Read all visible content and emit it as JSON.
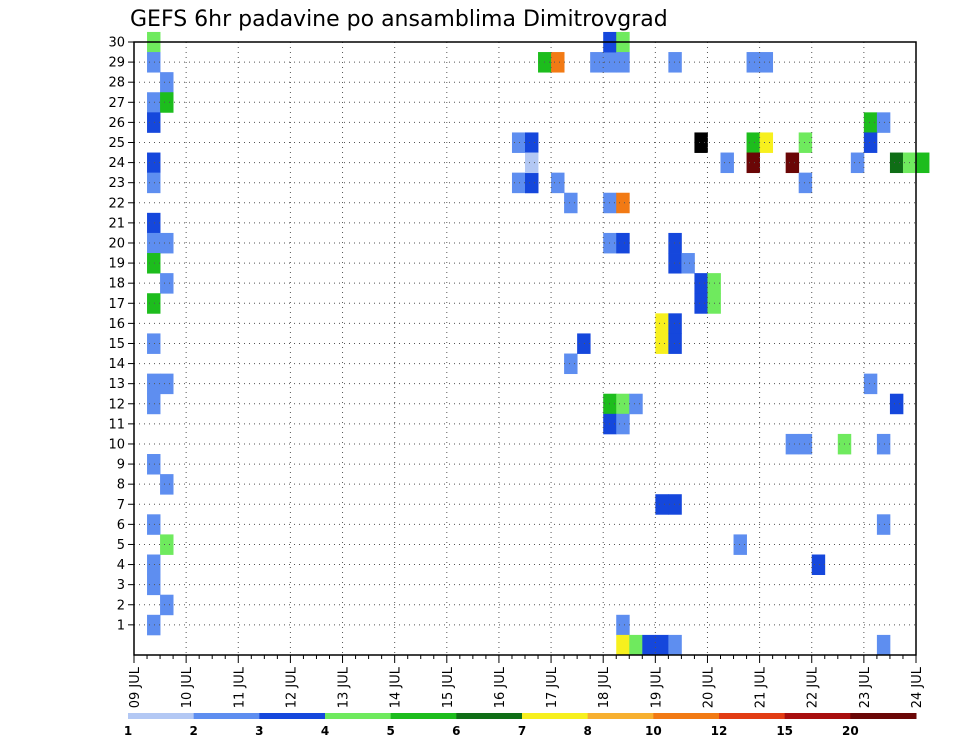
{
  "chart_data": {
    "type": "heatmap",
    "title": "GEFS 6hr padavine po ansamblima Dimitrovgrad",
    "x_tick_labels": [
      "09 JUL",
      "10 JUL",
      "11 JUL",
      "12 JUL",
      "13 JUL",
      "14 JUL",
      "15 JUL",
      "16 JUL",
      "17 JUL",
      "18 JUL",
      "19 JUL",
      "20 JUL",
      "21 JUL",
      "22 JUL",
      "23 JUL",
      "24 JUL"
    ],
    "y_tick_labels": [
      "1",
      "2",
      "3",
      "4",
      "5",
      "6",
      "7",
      "8",
      "9",
      "10",
      "11",
      "12",
      "13",
      "14",
      "15",
      "16",
      "17",
      "18",
      "19",
      "20",
      "21",
      "22",
      "23",
      "24",
      "25",
      "26",
      "27",
      "28",
      "29",
      "30"
    ],
    "y_range": [
      0,
      30
    ],
    "x_range_days": [
      0,
      15
    ],
    "grid": true,
    "legend_placement": "bottom",
    "legend_labels": [
      "1",
      "2",
      "3",
      "4",
      "5",
      "6",
      "7",
      "8",
      "10",
      "12",
      "15",
      "20"
    ],
    "legend_colors": [
      "#b3c8f4",
      "#5e8ef0",
      "#1547dc",
      "#6fea5e",
      "#1dbd1d",
      "#0f6e16",
      "#f7f01e",
      "#f7b030",
      "#f27a14",
      "#e23c14",
      "#a80e0e",
      "#6a0606"
    ],
    "cells": [
      {
        "t": 1,
        "m": 30,
        "c": 3
      },
      {
        "t": 1,
        "m": 29,
        "c": 1
      },
      {
        "t": 2,
        "m": 28,
        "c": 1
      },
      {
        "t": 1,
        "m": 27,
        "c": 1
      },
      {
        "t": 2,
        "m": 27,
        "c": 4
      },
      {
        "t": 1,
        "m": 26,
        "c": 2
      },
      {
        "t": 1,
        "m": 24,
        "c": 2
      },
      {
        "t": 1,
        "m": 23,
        "c": 1
      },
      {
        "t": 1,
        "m": 21,
        "c": 2
      },
      {
        "t": 1,
        "m": 20,
        "c": 1
      },
      {
        "t": 2,
        "m": 20,
        "c": 1
      },
      {
        "t": 1,
        "m": 19,
        "c": 4
      },
      {
        "t": 2,
        "m": 18,
        "c": 1
      },
      {
        "t": 1,
        "m": 17,
        "c": 4
      },
      {
        "t": 1,
        "m": 15,
        "c": 1
      },
      {
        "t": 1,
        "m": 13,
        "c": 1
      },
      {
        "t": 2,
        "m": 13,
        "c": 1
      },
      {
        "t": 1,
        "m": 12,
        "c": 1
      },
      {
        "t": 1,
        "m": 9,
        "c": 1
      },
      {
        "t": 2,
        "m": 8,
        "c": 1
      },
      {
        "t": 1,
        "m": 6,
        "c": 1
      },
      {
        "t": 2,
        "m": 5,
        "c": 3
      },
      {
        "t": 1,
        "m": 4,
        "c": 1
      },
      {
        "t": 1,
        "m": 3,
        "c": 1
      },
      {
        "t": 2,
        "m": 2,
        "c": 1
      },
      {
        "t": 1,
        "m": 1,
        "c": 1
      },
      {
        "t": 29,
        "m": 25,
        "c": 1
      },
      {
        "t": 30,
        "m": 25,
        "c": 2
      },
      {
        "t": 29,
        "m": 23,
        "c": 1
      },
      {
        "t": 30,
        "m": 23,
        "c": 2
      },
      {
        "t": 30,
        "m": 23,
        "c": 2
      },
      {
        "t": 30,
        "m": 24,
        "c": 0
      },
      {
        "t": 31,
        "m": 29,
        "c": 4
      },
      {
        "t": 32,
        "m": 29,
        "c": 8
      },
      {
        "t": 32,
        "m": 23,
        "c": 1
      },
      {
        "t": 33,
        "m": 22,
        "c": 1
      },
      {
        "t": 33,
        "m": 14,
        "c": 1
      },
      {
        "t": 34,
        "m": 15,
        "c": 2
      },
      {
        "t": 35,
        "m": 29,
        "c": 1
      },
      {
        "t": 36,
        "m": 29,
        "c": 1
      },
      {
        "t": 36,
        "m": 30,
        "c": 2
      },
      {
        "t": 37,
        "m": 30,
        "c": 3
      },
      {
        "t": 37,
        "m": 29,
        "c": 1
      },
      {
        "t": 36,
        "m": 22,
        "c": 1
      },
      {
        "t": 37,
        "m": 22,
        "c": 8
      },
      {
        "t": 36,
        "m": 20,
        "c": 1
      },
      {
        "t": 37,
        "m": 20,
        "c": 2
      },
      {
        "t": 36,
        "m": 12,
        "c": 4
      },
      {
        "t": 37,
        "m": 12,
        "c": 3
      },
      {
        "t": 38,
        "m": 12,
        "c": 1
      },
      {
        "t": 36,
        "m": 11,
        "c": 2
      },
      {
        "t": 37,
        "m": 11,
        "c": 1
      },
      {
        "t": 37,
        "m": 1,
        "c": 1
      },
      {
        "t": 37,
        "m": 0,
        "c": 6
      },
      {
        "t": 38,
        "m": 0,
        "c": 3
      },
      {
        "t": 39,
        "m": 0,
        "c": 2
      },
      {
        "t": 40,
        "m": 0,
        "c": 2
      },
      {
        "t": 41,
        "m": 0,
        "c": 1
      },
      {
        "t": 40,
        "m": 16,
        "c": 6
      },
      {
        "t": 40,
        "m": 15,
        "c": 6
      },
      {
        "t": 41,
        "m": 16,
        "c": 2
      },
      {
        "t": 41,
        "m": 15,
        "c": 2
      },
      {
        "t": 40,
        "m": 7,
        "c": 2
      },
      {
        "t": 41,
        "m": 7,
        "c": 2
      },
      {
        "t": 41,
        "m": 29,
        "c": 1
      },
      {
        "t": 41,
        "m": 20,
        "c": 2
      },
      {
        "t": 41,
        "m": 19,
        "c": 2
      },
      {
        "t": 42,
        "m": 19,
        "c": 1
      },
      {
        "t": 43,
        "m": 18,
        "c": 2
      },
      {
        "t": 44,
        "m": 18,
        "c": 3
      },
      {
        "t": 43,
        "m": 17,
        "c": 2
      },
      {
        "t": 44,
        "m": 17,
        "c": 3
      },
      {
        "t": 43,
        "m": 25,
        "c": 12
      },
      {
        "t": 45,
        "m": 24,
        "c": 1
      },
      {
        "t": 46,
        "m": 5,
        "c": 1
      },
      {
        "t": 47,
        "m": 25,
        "c": 4
      },
      {
        "t": 48,
        "m": 25,
        "c": 6
      },
      {
        "t": 47,
        "m": 24,
        "c": 11
      },
      {
        "t": 47,
        "m": 29,
        "c": 1
      },
      {
        "t": 48,
        "m": 29,
        "c": 1
      },
      {
        "t": 50,
        "m": 10,
        "c": 1
      },
      {
        "t": 51,
        "m": 10,
        "c": 1
      },
      {
        "t": 50,
        "m": 24,
        "c": 11
      },
      {
        "t": 51,
        "m": 23,
        "c": 1
      },
      {
        "t": 51,
        "m": 25,
        "c": 3
      },
      {
        "t": 52,
        "m": 4,
        "c": 2
      },
      {
        "t": 54,
        "m": 10,
        "c": 3
      },
      {
        "t": 55,
        "m": 24,
        "c": 1
      },
      {
        "t": 56,
        "m": 26,
        "c": 4
      },
      {
        "t": 57,
        "m": 26,
        "c": 1
      },
      {
        "t": 56,
        "m": 25,
        "c": 2
      },
      {
        "t": 56,
        "m": 13,
        "c": 1
      },
      {
        "t": 57,
        "m": 10,
        "c": 1
      },
      {
        "t": 57,
        "m": 6,
        "c": 1
      },
      {
        "t": 57,
        "m": 0,
        "c": 1
      },
      {
        "t": 58,
        "m": 24,
        "c": 5
      },
      {
        "t": 59,
        "m": 24,
        "c": 3
      },
      {
        "t": 58,
        "m": 12,
        "c": 2
      },
      {
        "t": 60,
        "m": 24,
        "c": 4
      }
    ]
  }
}
